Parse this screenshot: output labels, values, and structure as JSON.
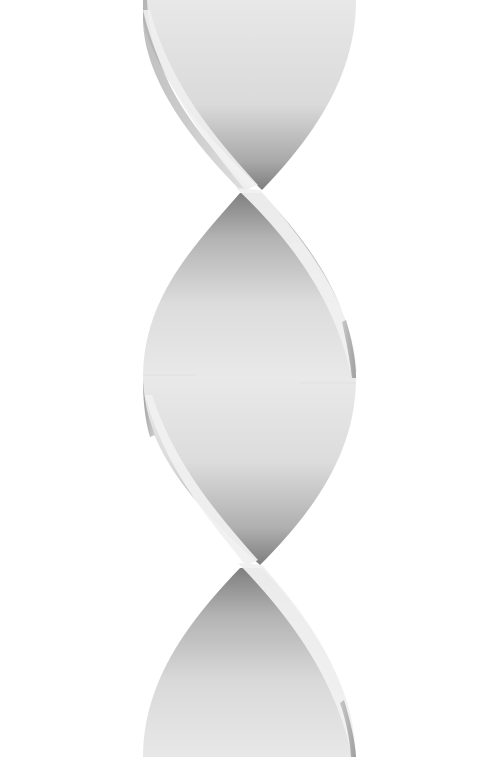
{
  "image": {
    "subject": "twisted-ribbon-helix",
    "twists": 2,
    "colors": {
      "background": "#ffffff",
      "ribbon_light": "#e6e6e6",
      "ribbon_mid": "#cfcfcf",
      "ribbon_dark": "#8e8e8e",
      "ribbon_edge": "#f2f2f2"
    }
  }
}
